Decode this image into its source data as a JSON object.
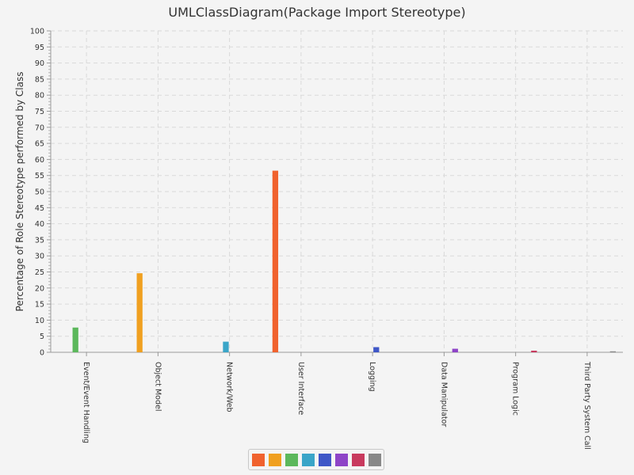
{
  "chart_data": {
    "type": "bar",
    "title": "UMLClassDiagram(Package Import Stereotype)",
    "xlabel": "",
    "ylabel": "Percentage of Role Stereotype performed by Class",
    "ylim": [
      0,
      100
    ],
    "y_major_ticks": [
      0,
      5,
      10,
      15,
      20,
      25,
      30,
      35,
      40,
      45,
      50,
      55,
      60,
      65,
      70,
      75,
      80,
      85,
      90,
      95,
      100
    ],
    "grid": true,
    "legend_position": "bottom-center",
    "categories": [
      "Event/Event Handling",
      "Object Model",
      "Network/Web",
      "User Interface",
      "Logging",
      "Data Manipulator",
      "Program Logic",
      "Third Party System Call"
    ],
    "series": [
      {
        "color": "#f0622e",
        "values": [
          0,
          0,
          0,
          56.5,
          0,
          0,
          0,
          0
        ]
      },
      {
        "color": "#f0a020",
        "values": [
          0,
          24.6,
          0,
          0,
          0,
          0,
          0,
          0
        ]
      },
      {
        "color": "#5cb85c",
        "values": [
          7.7,
          0,
          0,
          0,
          0,
          0,
          0,
          0
        ]
      },
      {
        "color": "#3aa5c8",
        "values": [
          0,
          0,
          3.3,
          0,
          0,
          0,
          0,
          0
        ]
      },
      {
        "color": "#3f57c7",
        "values": [
          0,
          0,
          0,
          0,
          1.6,
          0,
          0,
          0
        ]
      },
      {
        "color": "#8e44c7",
        "values": [
          0,
          0,
          0,
          0,
          0,
          1.1,
          0,
          0
        ]
      },
      {
        "color": "#c83a5e",
        "values": [
          0,
          0,
          0,
          0,
          0,
          0,
          0.5,
          0
        ]
      },
      {
        "color": "#888888",
        "values": [
          0,
          0,
          0,
          0,
          0,
          0,
          0,
          0.3
        ]
      }
    ]
  }
}
